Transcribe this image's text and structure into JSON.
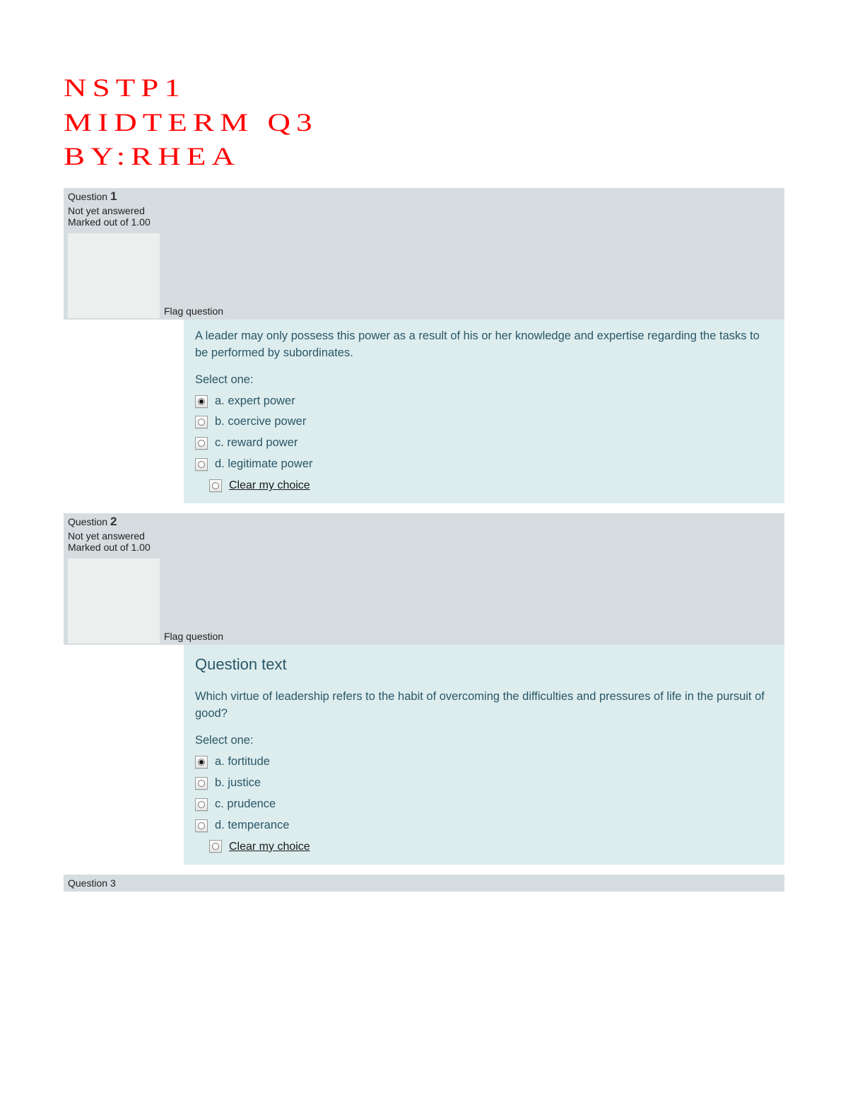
{
  "header": {
    "line1": "NSTP1",
    "line2": "MIDTERM Q3",
    "line3": "BY:RHEA"
  },
  "labels": {
    "question_prefix": "Question",
    "not_answered": "Not yet answered",
    "marked_out": "Marked out of 1.00",
    "flag": "Flag question",
    "select_one": "Select one:",
    "question_text_heading": "Question text",
    "clear_choice": "Clear my choice"
  },
  "questions": [
    {
      "number": "1",
      "show_question_text_heading": false,
      "stem": "A leader may only possess this power as a result of his or her knowledge and expertise regarding the tasks to be performed by subordinates.",
      "selected_index": 0,
      "options": [
        "a. expert power",
        "b. coercive power",
        "c. reward power",
        "d. legitimate power"
      ]
    },
    {
      "number": "2",
      "show_question_text_heading": true,
      "stem": "Which virtue of leadership refers to the habit of overcoming the difficulties and pressures of life in the pursuit of good?",
      "selected_index": 0,
      "options": [
        "a. fortitude",
        "b. justice",
        "c. prudence",
        "d. temperance"
      ]
    }
  ],
  "trailing_question_number": "3",
  "colors": {
    "title_color": "#ff0000",
    "grey_panel": "#d5dde0",
    "blue_panel": "#ddedee",
    "blue_text": "#2a5667",
    "background": "#ffffff"
  }
}
